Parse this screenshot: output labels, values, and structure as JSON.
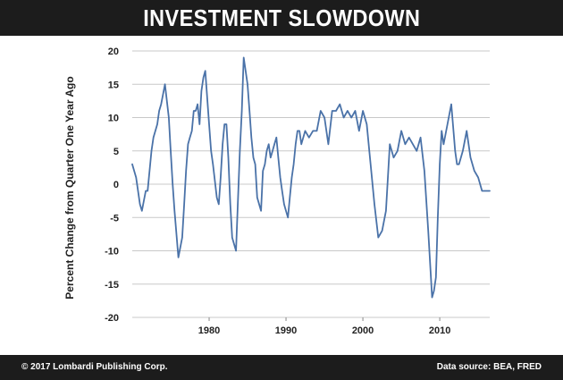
{
  "header": {
    "title": "INVESTMENT SLOWDOWN"
  },
  "footer": {
    "copyright": "© 2017 Lombardi Publishing Corp.",
    "source": "Data source: BEA, FRED"
  },
  "colors": {
    "line": "#4a72a8",
    "grid": "#c8c8c8",
    "bar": "#1c1c1c"
  },
  "chart_data": {
    "type": "line",
    "title": "INVESTMENT SLOWDOWN",
    "xlabel": "",
    "ylabel": "Percent Change from Quarter One Year Ago",
    "ylim": [
      -20,
      20
    ],
    "xlim": [
      1970,
      2016.5
    ],
    "grid": true,
    "y_ticks": [
      "20",
      "15",
      "10",
      "5",
      "0",
      "-5",
      "-10",
      "-15",
      "-20"
    ],
    "x_ticks": [
      "1980",
      "1990",
      "2000",
      "2010"
    ],
    "series": [
      {
        "x": [
          1970.0,
          1970.5,
          1971.0,
          1971.25,
          1971.75,
          1972.0,
          1972.5,
          1972.75,
          1973.25,
          1973.5,
          1973.75,
          1974.25,
          1974.75,
          1975.0,
          1975.25,
          1975.5,
          1976.0,
          1976.5,
          1976.75,
          1977.0,
          1977.25,
          1977.5,
          1977.75,
          1978.0,
          1978.25,
          1978.5,
          1978.75,
          1979.0,
          1979.25,
          1979.5,
          1980.0,
          1980.25,
          1980.5,
          1981.0,
          1981.25,
          1981.5,
          1981.75,
          1982.0,
          1982.25,
          1982.5,
          1982.75,
          1983.0,
          1983.5,
          1984.0,
          1984.25,
          1984.5,
          1985.0,
          1985.25,
          1985.5,
          1985.75,
          1986.0,
          1986.25,
          1986.75,
          1987.0,
          1987.25,
          1987.5,
          1987.75,
          1988.0,
          1988.25,
          1988.5,
          1988.75,
          1989.0,
          1989.25,
          1989.5,
          1989.75,
          1990.0,
          1990.25,
          1990.5,
          1990.75,
          1991.0,
          1991.25,
          1991.5,
          1991.75,
          1992.0,
          1992.5,
          1993.0,
          1993.5,
          1994.0,
          1994.5,
          1995.0,
          1995.5,
          1996.0,
          1996.5,
          1997.0,
          1997.5,
          1998.0,
          1998.5,
          1999.0,
          1999.5,
          2000.0,
          2000.5,
          2001.0,
          2001.5,
          2002.0,
          2002.5,
          2003.0,
          2003.5,
          2004.0,
          2004.5,
          2005.0,
          2005.5,
          2006.0,
          2006.5,
          2007.0,
          2007.5,
          2008.0,
          2008.5,
          2009.0,
          2009.25,
          2009.5,
          2009.75,
          2010.0,
          2010.25,
          2010.5,
          2011.0,
          2011.5,
          2012.0,
          2012.25,
          2012.5,
          2013.0,
          2013.5,
          2014.0,
          2014.5,
          2015.0,
          2015.5,
          2016.0,
          2016.5
        ],
        "values": [
          3,
          1,
          -3,
          -4,
          -1,
          -1,
          5,
          7,
          9,
          11,
          12,
          15,
          10,
          5,
          0,
          -4,
          -11,
          -8,
          -3,
          2,
          6,
          7,
          8,
          11,
          11,
          12,
          9,
          14,
          16,
          17,
          9,
          5,
          3,
          -2,
          -3,
          1,
          6,
          9,
          9,
          4,
          -3,
          -8,
          -10,
          5,
          11,
          19,
          15,
          11,
          7,
          4,
          3,
          -2,
          -4,
          2,
          3,
          5,
          6,
          4,
          5,
          6,
          7,
          4,
          1,
          -1,
          -3,
          -4,
          -5,
          -2,
          1,
          3,
          6,
          8,
          8,
          6,
          8,
          7,
          8,
          8,
          11,
          10,
          6,
          11,
          11,
          12,
          10,
          11,
          10,
          11,
          8,
          11,
          9,
          3,
          -3,
          -8,
          -7,
          -4,
          6,
          4,
          5,
          8,
          6,
          7,
          6,
          5,
          7,
          2,
          -7,
          -17,
          -16,
          -14,
          -5,
          3,
          8,
          6,
          9,
          12,
          5,
          3,
          3,
          5,
          8,
          4,
          2,
          1,
          -1,
          -1,
          -1
        ]
      }
    ]
  }
}
